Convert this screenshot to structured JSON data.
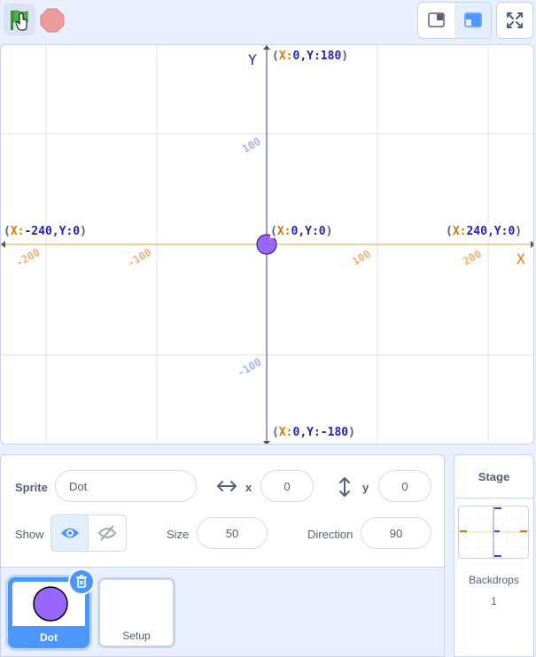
{
  "toolbar": {
    "green_flag_icon": "green-flag-icon",
    "stop_icon": "stop-icon",
    "accent": "#4c97ff"
  },
  "stage": {
    "y_axis_letter": "Y",
    "x_axis_letter": "X",
    "labels": {
      "top": {
        "xk": "X:",
        "xv": "0",
        "sep": ",",
        "yk": "Y:",
        "yv": "180"
      },
      "bottom": {
        "xk": "X:",
        "xv": "0",
        "sep": ",",
        "yk": "Y:",
        "yv": "-180"
      },
      "left": {
        "xk": "X:",
        "xv": "-240",
        "sep": ",",
        "yk": "Y:",
        "yv": "0"
      },
      "right": {
        "xk": "X:",
        "xv": "240",
        "sep": ",",
        "yk": "Y:",
        "yv": "0"
      },
      "center": {
        "xk": "X:",
        "xv": "0",
        "sep": ",",
        "yk": "Y:",
        "yv": "0"
      }
    },
    "x_ticks": [
      "-200",
      "-100",
      "100",
      "200"
    ],
    "y_ticks": [
      "100",
      "-100"
    ],
    "dot_color": "#9966ff",
    "x_axis_color": "#e6a23c",
    "y_axis_color": "#3b3b8f"
  },
  "sprite_info": {
    "sprite_label": "Sprite",
    "sprite_name": "Dot",
    "x_label": "x",
    "x_value": "0",
    "y_label": "y",
    "y_value": "0",
    "show_label": "Show",
    "size_label": "Size",
    "size_value": "50",
    "direction_label": "Direction",
    "direction_value": "90"
  },
  "sprites": [
    {
      "name": "Dot",
      "selected": true
    },
    {
      "name": "Setup",
      "selected": false
    }
  ],
  "stage_panel": {
    "title": "Stage",
    "backdrops_label": "Backdrops",
    "backdrops_count": "1"
  }
}
